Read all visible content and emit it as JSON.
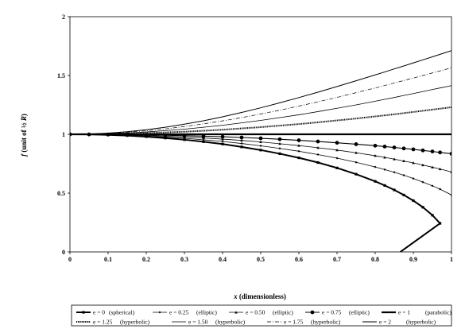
{
  "chart_data": {
    "type": "line",
    "title": "",
    "xlabel_var": "x",
    "xlabel_rest": " (dimensionless)",
    "ylabel_var": "f",
    "ylabel_rest_open": " (unit of ½ ",
    "ylabel_R": "R",
    "ylabel_rest_close": ")",
    "xlim": [
      0,
      1
    ],
    "ylim": [
      0,
      2
    ],
    "xticks": [
      0,
      0.1,
      0.2,
      0.3,
      0.4,
      0.5,
      0.6,
      0.7,
      0.8,
      0.9,
      1
    ],
    "xtick_labels": [
      "0",
      "0.1",
      "0.2",
      "0.3",
      "0.4",
      "0.5",
      "0.6",
      "0.7",
      "0.8",
      "0.9",
      "1"
    ],
    "yticks": [
      0,
      0.5,
      1,
      1.5,
      2
    ],
    "ytick_labels": [
      "0",
      "0.5",
      "1",
      "1.5",
      "2"
    ],
    "grid": false,
    "legend_position": "bottom",
    "x": [
      0,
      0.05,
      0.1,
      0.15,
      0.2,
      0.25,
      0.3,
      0.35,
      0.4,
      0.45,
      0.5,
      0.55,
      0.6,
      0.65,
      0.7,
      0.75,
      0.8,
      0.825,
      0.85,
      0.875,
      0.9,
      0.925,
      0.95,
      0.97,
      1
    ],
    "series": [
      {
        "name": "e = 0",
        "desc": "(spherical)",
        "e": 0
      },
      {
        "name": "e = 0.25",
        "desc": "(elliptic)",
        "e": 0.25
      },
      {
        "name": "e = 0.50",
        "desc": "(elliptic)",
        "e": 0.5
      },
      {
        "name": "e = 0.75",
        "desc": "(elliptic)",
        "e": 0.75
      },
      {
        "name": "e = 1",
        "desc": "(parabolic)",
        "e": 1
      },
      {
        "name": "e = 1.25",
        "desc": "(hyperbolic)",
        "e": 1.25
      },
      {
        "name": "e = 1.50",
        "desc": "(hyperbolic)",
        "e": 1.5
      },
      {
        "name": "e = 1.75",
        "desc": "(hyperbolic)",
        "e": 1.75
      },
      {
        "name": "e = 2",
        "desc": "(hyperbolic)",
        "e": 2
      }
    ],
    "series_values": [
      [
        1,
        0.999,
        0.995,
        0.989,
        0.98,
        0.968,
        0.954,
        0.937,
        0.917,
        0.893,
        0.866,
        0.835,
        0.8,
        0.76,
        0.714,
        0.661,
        0.6,
        0.565,
        0.527,
        0.484,
        0.436,
        0.38,
        0.312,
        0.243,
        null
      ],
      [
        1,
        0.999,
        0.996,
        0.992,
        0.985,
        0.976,
        0.966,
        0.953,
        0.939,
        0.922,
        0.902,
        0.88,
        0.856,
        0.828,
        0.797,
        0.762,
        0.722,
        0.7,
        0.677,
        0.652,
        0.624,
        0.594,
        0.562,
        0.534,
        0.484
      ],
      [
        1,
        0.999,
        0.997,
        0.994,
        0.99,
        0.984,
        0.977,
        0.969,
        0.959,
        0.948,
        0.935,
        0.92,
        0.904,
        0.886,
        0.866,
        0.843,
        0.818,
        0.804,
        0.789,
        0.773,
        0.757,
        0.739,
        0.72,
        0.705,
        0.68
      ],
      [
        1,
        0.999,
        0.998,
        0.997,
        0.995,
        0.992,
        0.988,
        0.984,
        0.979,
        0.973,
        0.966,
        0.958,
        0.949,
        0.939,
        0.928,
        0.916,
        0.903,
        0.896,
        0.888,
        0.88,
        0.872,
        0.863,
        0.854,
        0.846,
        0.835
      ],
      [
        1,
        1,
        1,
        1,
        1,
        1,
        1,
        1,
        1,
        1,
        1,
        1,
        1,
        1,
        1,
        1,
        1,
        1,
        1,
        1,
        1,
        1,
        1,
        1,
        1
      ],
      [
        1,
        1.001,
        1.003,
        1.006,
        1.01,
        1.016,
        1.022,
        1.03,
        1.039,
        1.05,
        1.061,
        1.074,
        1.087,
        1.102,
        1.118,
        1.134,
        1.152,
        1.161,
        1.17,
        1.18,
        1.19,
        1.2,
        1.21,
        1.218,
        1.23
      ],
      [
        1,
        1.001,
        1.005,
        1.011,
        1.02,
        1.031,
        1.044,
        1.06,
        1.077,
        1.097,
        1.118,
        1.142,
        1.166,
        1.193,
        1.221,
        1.25,
        1.281,
        1.297,
        1.313,
        1.33,
        1.346,
        1.363,
        1.381,
        1.394,
        1.414
      ],
      [
        1,
        1.002,
        1.008,
        1.017,
        1.03,
        1.046,
        1.066,
        1.089,
        1.114,
        1.142,
        1.173,
        1.205,
        1.24,
        1.276,
        1.314,
        1.354,
        1.394,
        1.415,
        1.436,
        1.457,
        1.478,
        1.5,
        1.522,
        1.539,
        1.565
      ],
      [
        1,
        1.002,
        1.01,
        1.022,
        1.039,
        1.06,
        1.086,
        1.115,
        1.149,
        1.186,
        1.225,
        1.268,
        1.312,
        1.358,
        1.406,
        1.455,
        1.505,
        1.53,
        1.556,
        1.581,
        1.607,
        1.633,
        1.659,
        1.68,
        1.711
      ]
    ]
  }
}
